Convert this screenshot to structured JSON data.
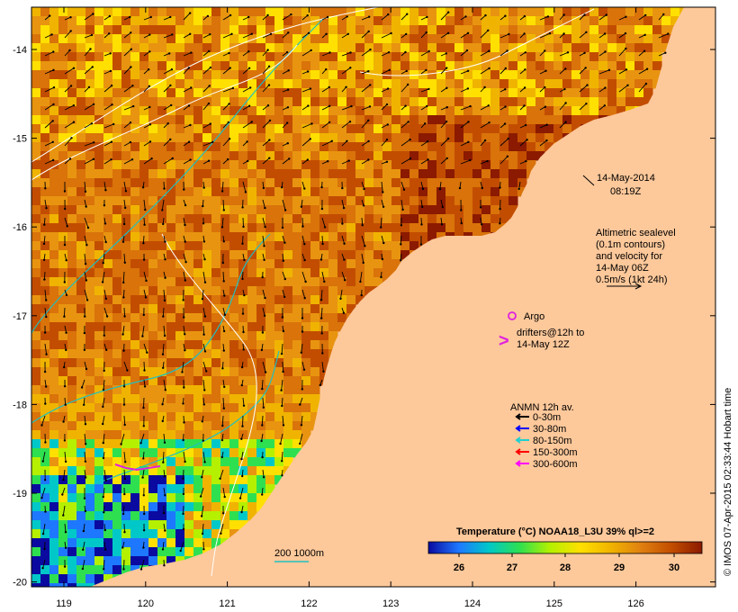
{
  "map": {
    "x_ticks": [
      "119",
      "120",
      "121",
      "122",
      "123",
      "124",
      "125",
      "126"
    ],
    "y_ticks": [
      "-14",
      "-15",
      "-16",
      "-17",
      "-18",
      "-19",
      "-20"
    ],
    "lon_range": [
      118.6,
      126.7
    ],
    "lat_range": [
      -13.55,
      -20.1
    ],
    "sea_colors": [
      "#8b1a00",
      "#c24d00",
      "#d9730a",
      "#e89410",
      "#f0b400",
      "#ffe000",
      "#b4f000",
      "#2ee050",
      "#00c8c8",
      "#1e78ff",
      "#0a0aa0"
    ],
    "land_color": "#fdc89a"
  },
  "timestamp": {
    "date": "14-May-2014",
    "time": "08:19Z"
  },
  "altimetry": {
    "line1": "Altimetric sealevel",
    "line2": "(0.1m contours)",
    "line3": "and velocity for",
    "line4": "14-May 06Z",
    "line5": "0.5m/s (1kt 24h)"
  },
  "argo": {
    "label": "Argo",
    "color": "#e020e0"
  },
  "drifters": {
    "line1": "drifters@12h to",
    "line2": "14-May 12Z",
    "symbol": ">"
  },
  "anmn": {
    "title": "ANMN 12h av.",
    "items": [
      {
        "label": "0-30m",
        "color": "#000000"
      },
      {
        "label": "30-80m",
        "color": "#0000ff"
      },
      {
        "label": "80-150m",
        "color": "#20d0d0"
      },
      {
        "label": "150-300m",
        "color": "#ff0000"
      },
      {
        "label": "300-600m",
        "color": "#ff00ff"
      }
    ]
  },
  "depth_legend": {
    "label": "200  1000m",
    "color": "#20c0c0"
  },
  "colorbar": {
    "title": "Temperature (°C) NOAA18_L3U 39% ql>=2",
    "ticks": [
      "26",
      "27",
      "28",
      "29",
      "30"
    ],
    "stops": [
      "#0a0aa0",
      "#1e78ff",
      "#00c8c8",
      "#2ee050",
      "#b4f000",
      "#ffe000",
      "#f0b400",
      "#e08010",
      "#c24d00",
      "#8b1a00"
    ]
  },
  "credit": "© IMOS 07-Apr-2015 02:33:44 Hobart time"
}
